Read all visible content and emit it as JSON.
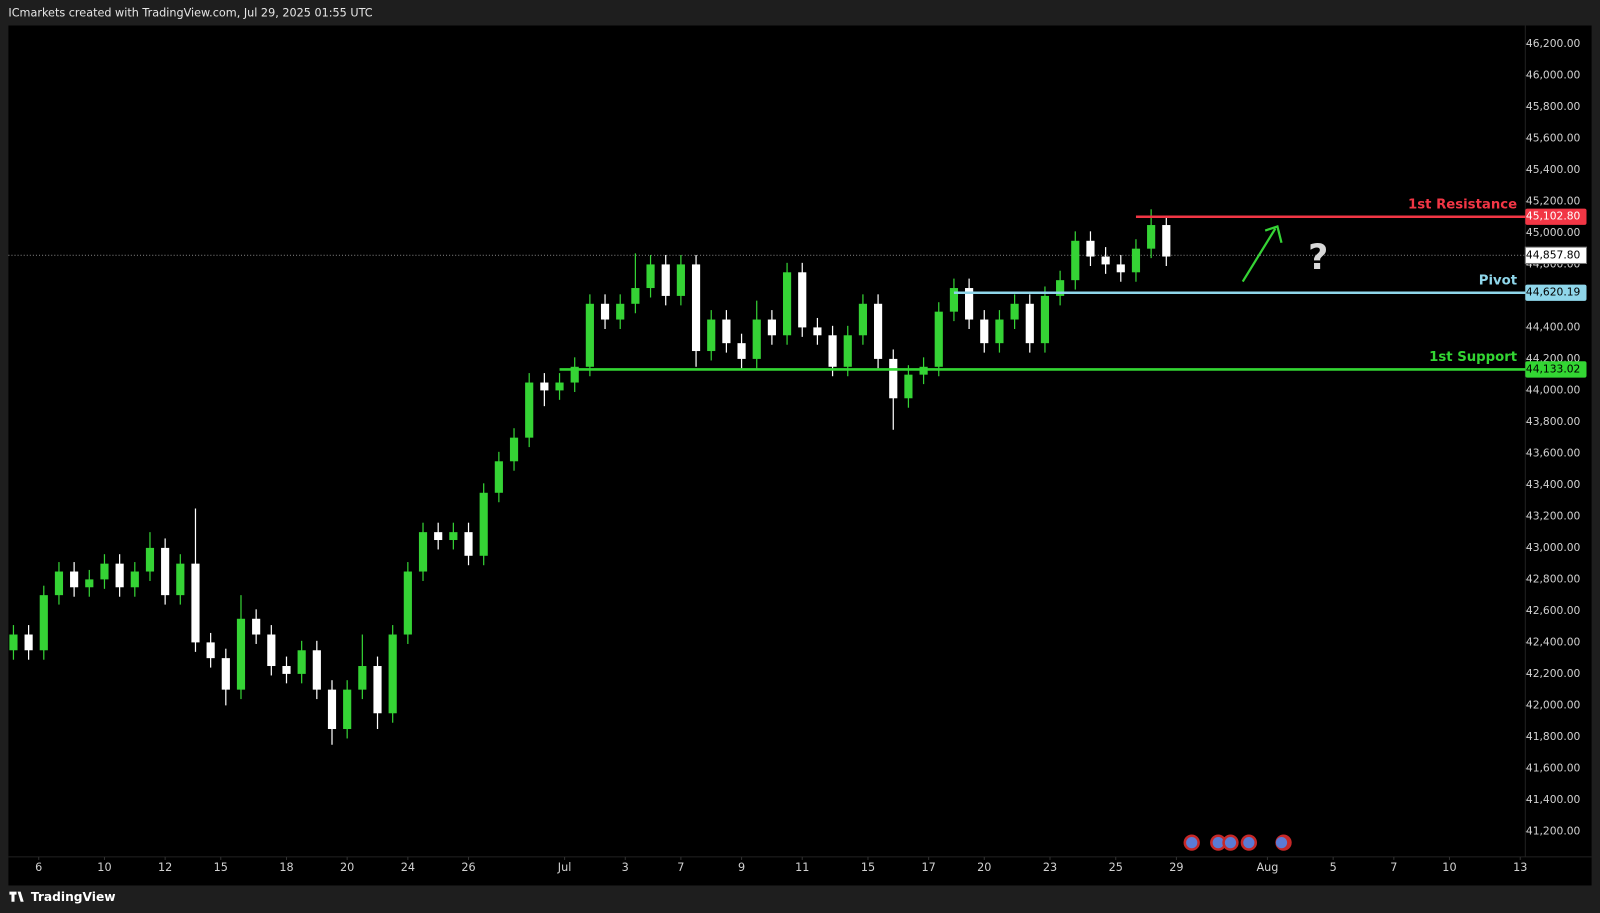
{
  "header": "ICmarkets created with TradingView.com, Jul 29, 2025 01:55 UTC",
  "footer": "TradingView",
  "chart_data": {
    "type": "candlestick",
    "annotation": "?",
    "up_color": "#35d335",
    "down_color": "#ffffff",
    "grid": false,
    "xlim": [
      0,
      300
    ],
    "ylim": [
      41038,
      46317
    ],
    "xticks": [
      {
        "value": 6,
        "label": "6"
      },
      {
        "value": 19,
        "label": "10"
      },
      {
        "value": 31,
        "label": "12"
      },
      {
        "value": 42,
        "label": "15"
      },
      {
        "value": 55,
        "label": "18"
      },
      {
        "value": 67,
        "label": "20"
      },
      {
        "value": 79,
        "label": "24"
      },
      {
        "value": 91,
        "label": "26"
      },
      {
        "value": 110,
        "label": "Jul"
      },
      {
        "value": 122,
        "label": "3"
      },
      {
        "value": 133,
        "label": "7"
      },
      {
        "value": 145,
        "label": "9"
      },
      {
        "value": 157,
        "label": "11"
      },
      {
        "value": 170,
        "label": "15"
      },
      {
        "value": 182,
        "label": "17"
      },
      {
        "value": 193,
        "label": "20"
      },
      {
        "value": 206,
        "label": "23"
      },
      {
        "value": 219,
        "label": "25"
      },
      {
        "value": 231,
        "label": "29"
      },
      {
        "value": 249,
        "label": "Aug"
      },
      {
        "value": 262,
        "label": "5"
      },
      {
        "value": 274,
        "label": "7"
      },
      {
        "value": 285,
        "label": "10"
      },
      {
        "value": 299,
        "label": "13"
      }
    ],
    "yticks": [
      {
        "value": 41200,
        "label": "41,200.00"
      },
      {
        "value": 41400,
        "label": "41,400.00"
      },
      {
        "value": 41600,
        "label": "41,600.00"
      },
      {
        "value": 41800,
        "label": "41,800.00"
      },
      {
        "value": 42000,
        "label": "42,000.00"
      },
      {
        "value": 42200,
        "label": "42,200.00"
      },
      {
        "value": 42400,
        "label": "42,400.00"
      },
      {
        "value": 42600,
        "label": "42,600.00"
      },
      {
        "value": 42800,
        "label": "42,800.00"
      },
      {
        "value": 43000,
        "label": "43,000.00"
      },
      {
        "value": 43200,
        "label": "43,200.00"
      },
      {
        "value": 43400,
        "label": "43,400.00"
      },
      {
        "value": 43600,
        "label": "43,600.00"
      },
      {
        "value": 43800,
        "label": "43,800.00"
      },
      {
        "value": 44000,
        "label": "44,000.00"
      },
      {
        "value": 44200,
        "label": "44,200.00"
      },
      {
        "value": 44400,
        "label": "44,400.00"
      },
      {
        "value": 44600,
        "label": "44,600.00"
      },
      {
        "value": 44800,
        "label": "44,800.00"
      },
      {
        "value": 45000,
        "label": "45,000.00"
      },
      {
        "value": 45200,
        "label": "45,200.00"
      },
      {
        "value": 45400,
        "label": "45,400.00"
      },
      {
        "value": 45600,
        "label": "45,600.00"
      },
      {
        "value": 45800,
        "label": "45,800.00"
      },
      {
        "value": 46000,
        "label": "46,000.00"
      },
      {
        "value": 46200,
        "label": "46,200.00"
      }
    ],
    "current_price": {
      "value": 44857.8,
      "label": "44,857.80"
    },
    "levels": [
      {
        "name": "1st Resistance",
        "value": 45102.8,
        "label": "45,102.80",
        "color": "#f23645",
        "x_start": 223
      },
      {
        "name": "Pivot",
        "value": 44620.19,
        "label": "44,620.19",
        "color": "#8fd6ea",
        "x_start": 187
      },
      {
        "name": "1st Support",
        "value": 44133.02,
        "label": "44,133.02",
        "color": "#33d633",
        "x_start": 109
      }
    ],
    "x": [
      1,
      4,
      7,
      10,
      13,
      16,
      19,
      22,
      25,
      28,
      31,
      34,
      37,
      40,
      43,
      46,
      49,
      52,
      55,
      58,
      61,
      64,
      67,
      70,
      73,
      76,
      79,
      82,
      85,
      88,
      91,
      94,
      97,
      100,
      103,
      106,
      109,
      112,
      115,
      118,
      121,
      124,
      127,
      130,
      133,
      136,
      139,
      142,
      145,
      148,
      151,
      154,
      157,
      160,
      163,
      166,
      169,
      172,
      175,
      178,
      181,
      184,
      187,
      190,
      193,
      196,
      199,
      202,
      205,
      208,
      211,
      214,
      217,
      220,
      223,
      226,
      229
    ],
    "open": [
      42350,
      42450,
      42350,
      42700,
      42850,
      42750,
      42800,
      42900,
      42750,
      42850,
      43000,
      42700,
      42900,
      42400,
      42300,
      42100,
      42550,
      42450,
      42250,
      42200,
      42350,
      42100,
      41850,
      42100,
      42250,
      41950,
      42450,
      42850,
      43100,
      43050,
      43100,
      42950,
      43350,
      43550,
      43700,
      44050,
      44000,
      44050,
      44150,
      44550,
      44450,
      44550,
      44650,
      44800,
      44600,
      44800,
      44250,
      44450,
      44300,
      44200,
      44450,
      44350,
      44750,
      44400,
      44350,
      44150,
      44350,
      44550,
      44200,
      43950,
      44100,
      44150,
      44500,
      44650,
      44450,
      44300,
      44450,
      44550,
      44300,
      44600,
      44700,
      44950,
      44850,
      44800,
      44750,
      44900,
      45050
    ],
    "high": [
      42510,
      42510,
      42760,
      42910,
      42910,
      42860,
      42960,
      42960,
      42910,
      43100,
      43060,
      42960,
      43250,
      42460,
      42360,
      42700,
      42610,
      42510,
      42310,
      42410,
      42410,
      42160,
      42160,
      42450,
      42310,
      42510,
      42910,
      43160,
      43160,
      43160,
      43160,
      43410,
      43610,
      43760,
      44110,
      44110,
      44110,
      44210,
      44610,
      44610,
      44610,
      44870,
      44860,
      44860,
      44860,
      44860,
      44510,
      44510,
      44360,
      44570,
      44510,
      44810,
      44810,
      44460,
      44410,
      44410,
      44610,
      44610,
      44260,
      44160,
      44210,
      44560,
      44710,
      44710,
      44510,
      44510,
      44610,
      44610,
      44660,
      44760,
      45010,
      45010,
      44910,
      44860,
      44960,
      45150,
      45110
    ],
    "low": [
      42290,
      42290,
      42290,
      42640,
      42690,
      42690,
      42740,
      42690,
      42690,
      42790,
      42640,
      42640,
      42340,
      42240,
      42000,
      42040,
      42390,
      42190,
      42140,
      42140,
      42040,
      41750,
      41790,
      42040,
      41850,
      41890,
      42390,
      42790,
      42990,
      42990,
      42890,
      42890,
      43290,
      43490,
      43640,
      43900,
      43940,
      43990,
      44090,
      44390,
      44390,
      44490,
      44590,
      44540,
      44540,
      44150,
      44190,
      44240,
      44140,
      44140,
      44290,
      44290,
      44340,
      44290,
      44090,
      44090,
      44290,
      44140,
      43750,
      43890,
      44040,
      44090,
      44440,
      44390,
      44240,
      44240,
      44390,
      44240,
      44240,
      44540,
      44640,
      44790,
      44740,
      44690,
      44690,
      44840,
      44790
    ],
    "close": [
      42450,
      42350,
      42700,
      42850,
      42750,
      42800,
      42900,
      42750,
      42850,
      43000,
      42700,
      42900,
      42400,
      42300,
      42100,
      42550,
      42450,
      42250,
      42200,
      42350,
      42100,
      41850,
      42100,
      42250,
      41950,
      42450,
      42850,
      43100,
      43050,
      43100,
      42950,
      43350,
      43550,
      43700,
      44050,
      44000,
      44050,
      44150,
      44550,
      44450,
      44550,
      44650,
      44800,
      44600,
      44800,
      44250,
      44450,
      44300,
      44200,
      44450,
      44350,
      44750,
      44400,
      44350,
      44150,
      44350,
      44550,
      44200,
      43950,
      44100,
      44150,
      44500,
      44650,
      44450,
      44300,
      44450,
      44550,
      44300,
      44600,
      44700,
      44950,
      44850,
      44800,
      44750,
      44900,
      45050,
      44850
    ]
  }
}
